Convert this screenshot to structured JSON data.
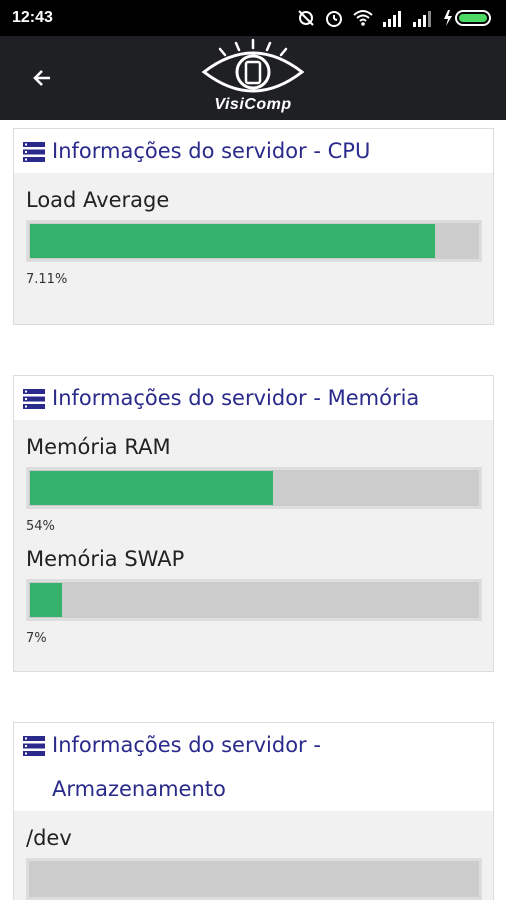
{
  "status_bar": {
    "time": "12:43"
  },
  "app_bar": {
    "logo_text": "VisiComp"
  },
  "cards": {
    "cpu": {
      "title": "Informações do servidor - CPU",
      "metrics": [
        {
          "label": "Load Average",
          "value_text": "7.11%",
          "fill_fraction": 0.9
        }
      ]
    },
    "memoria": {
      "title": "Informações do servidor - Memória",
      "metrics": [
        {
          "label": "Memória RAM",
          "value_text": "54%",
          "fill_fraction": 0.54
        },
        {
          "label": "Memória SWAP",
          "value_text": "7%",
          "fill_fraction": 0.07
        }
      ]
    },
    "armazenamento": {
      "title": "Informações do servidor - Armazenamento",
      "metrics": [
        {
          "label": "/dev"
        }
      ]
    }
  },
  "colors": {
    "accent_title": "#2a2a8c",
    "bar_fill": "#34b16b",
    "bar_track": "#cccccc",
    "app_bar": "#1f2023"
  },
  "icons": {
    "back": "arrow-left-icon",
    "server": "server-icon",
    "status": [
      "sync-off-icon",
      "alarm-icon",
      "wifi-icon",
      "signal-icon",
      "signal-icon",
      "battery-charging-icon"
    ]
  }
}
